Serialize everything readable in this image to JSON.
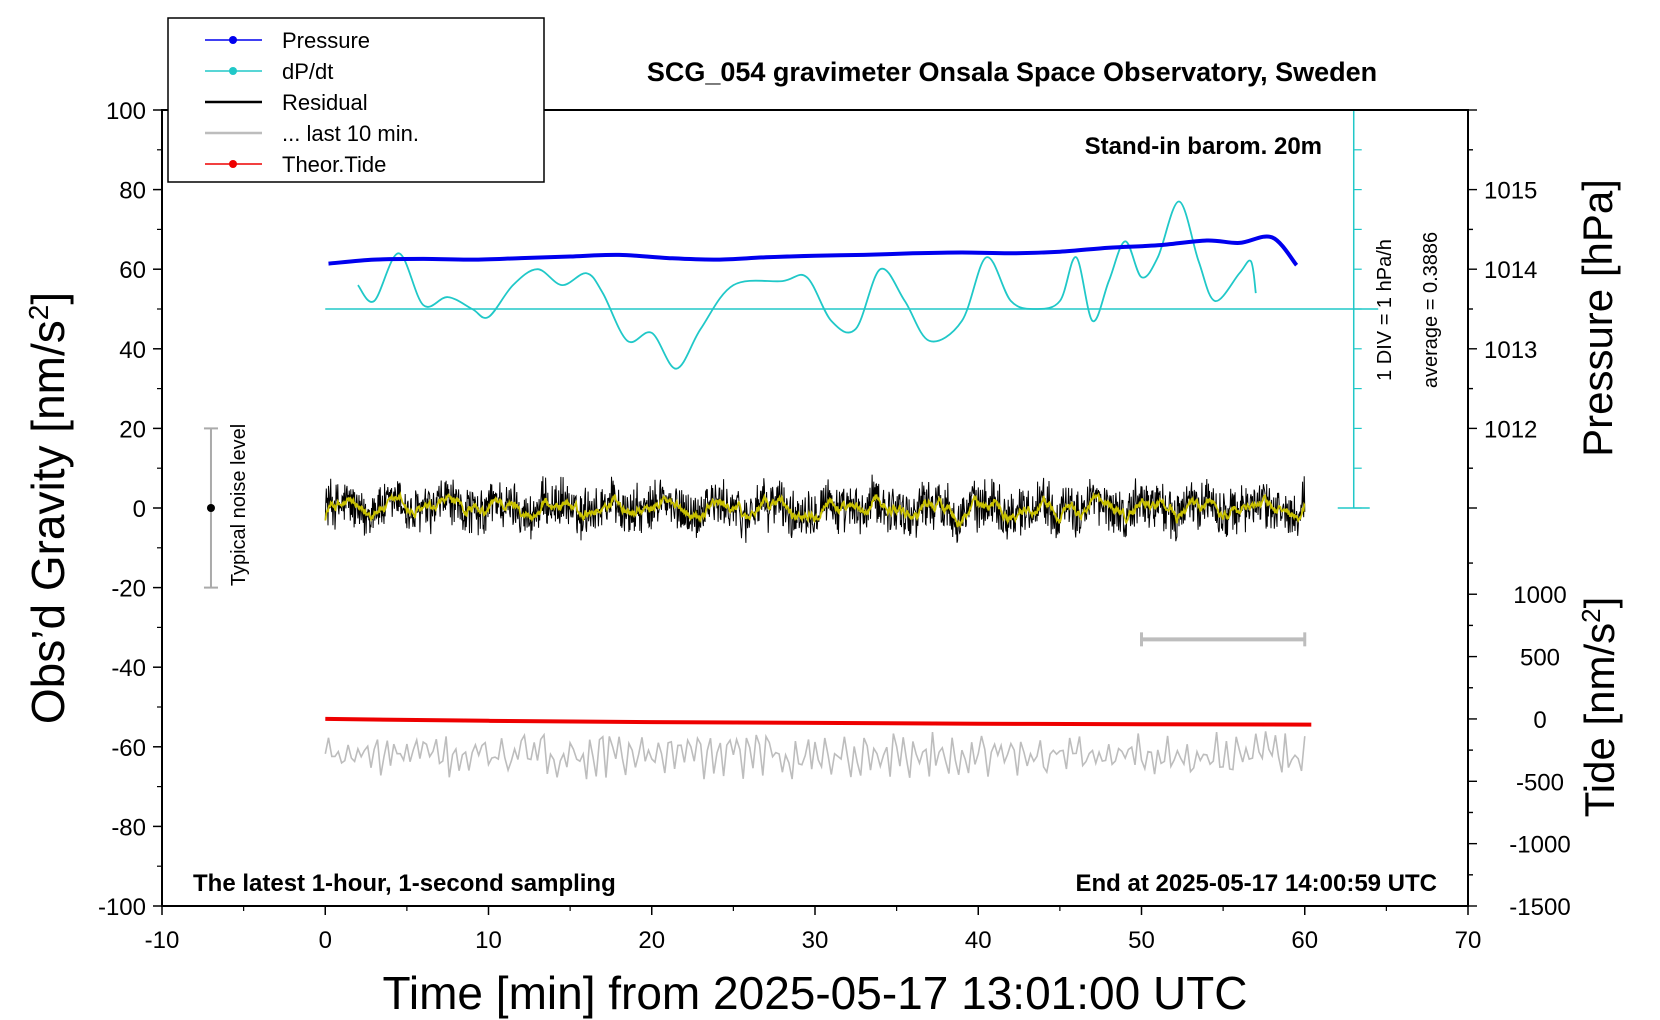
{
  "chart_data": {
    "type": "line",
    "title": "SCG_054 gravimeter Onsala Space Observatory, Sweden",
    "xlabel": "Time [min] from 2025-05-17 13:01:00 UTC",
    "ylabel_left_main": "Obs’d Gravity [nm/s",
    "ylabel_left_sup": "2",
    "ylabel_left_end": "]",
    "ylabel_right_pressure": "Pressure [hPa]",
    "ylabel_right_tide_main": "Tide [nm/s",
    "ylabel_right_tide_sup": "2",
    "ylabel_right_tide_end": "]",
    "xlim": [
      -10,
      70
    ],
    "ylim_left": [
      -100,
      100
    ],
    "pressure_axis": {
      "range": [
        1011,
        1016
      ],
      "ticks": [
        1012,
        1013,
        1014,
        1015
      ],
      "tick_labels": [
        "1012",
        "1013",
        "1014",
        "1015"
      ]
    },
    "tide_axis": {
      "range": [
        -1500,
        1500
      ],
      "ticks": [
        -1500,
        -1000,
        -500,
        0,
        500,
        1000
      ],
      "tick_labels": [
        "-1500",
        "-1000",
        "-500",
        "0",
        "500",
        "1000"
      ]
    },
    "x_ticks": [
      -10,
      0,
      10,
      20,
      30,
      40,
      50,
      60,
      70
    ],
    "x_tick_labels": [
      "-10",
      "0",
      "10",
      "20",
      "30",
      "40",
      "50",
      "60",
      "70"
    ],
    "y_ticks": [
      -100,
      -80,
      -60,
      -40,
      -20,
      0,
      20,
      40,
      60,
      80,
      100
    ],
    "y_tick_labels": [
      "-100",
      "-80",
      "-60",
      "-40",
      "-20",
      "0",
      "20",
      "40",
      "60",
      "80",
      "100"
    ],
    "annotations": {
      "barometer": "Stand-in barom. 20m",
      "latest": "The latest 1-hour, 1-second sampling",
      "end_time": "End at 2025-05-17 14:00:59 UTC",
      "noise_label": "Typical noise level",
      "div_label": "1 DIV = 1 hPa/h",
      "average_label": "average = 0.3886"
    },
    "legend": [
      {
        "label": "Pressure",
        "color": "#0000ee",
        "marker": true
      },
      {
        "label": "dP/dt",
        "color": "#20c8c8",
        "marker": true
      },
      {
        "label": "Residual",
        "color": "#000000",
        "marker": false
      },
      {
        "label": "... last 10 min.",
        "color": "#bdbdbd",
        "marker": false
      },
      {
        "label": "Theor.Tide",
        "color": "#ee0000",
        "marker": true
      }
    ],
    "colors": {
      "pressure": "#0000ee",
      "dpdt": "#20c8c8",
      "residual": "#000000",
      "residual_smooth": "#c8c000",
      "last10": "#bdbdbd",
      "tide": "#ee0000",
      "noise_bar": "#aaaaaa",
      "div_axis": "#20c8c8"
    },
    "noise_bar": {
      "x": -7,
      "y_center": 0,
      "y_low": -20,
      "y_high": 20
    },
    "last10_bar": {
      "x_start": 50,
      "x_end": 60,
      "y": -33
    },
    "dpdt_baseline_y": 50,
    "div_axis": {
      "x": 63,
      "y_bottom": 0,
      "y_top": 100,
      "tick_step": 10
    },
    "series": [
      {
        "name": "Pressure",
        "x": [
          0.2,
          3,
          6,
          9,
          12,
          15,
          18,
          21,
          24,
          27,
          30,
          33,
          36,
          39,
          42,
          45,
          48,
          51,
          54,
          56,
          58,
          59.5
        ],
        "values": [
          1014.07,
          1014.12,
          1014.13,
          1014.12,
          1014.14,
          1014.16,
          1014.18,
          1014.14,
          1014.12,
          1014.15,
          1014.17,
          1014.18,
          1014.2,
          1014.21,
          1014.2,
          1014.22,
          1014.27,
          1014.3,
          1014.36,
          1014.33,
          1014.4,
          1014.05
        ]
      },
      {
        "name": "dP/dt",
        "x": [
          2,
          3,
          4.5,
          6,
          7.5,
          9,
          10,
          11.5,
          13,
          14.5,
          16,
          17,
          18.5,
          20,
          21.5,
          23,
          25,
          28,
          29.5,
          31,
          32.5,
          34,
          35.5,
          37,
          39,
          40.5,
          42,
          43.5,
          45,
          46,
          47,
          48,
          49,
          50,
          51,
          52.3,
          53.5,
          54.5,
          56,
          56.7,
          57
        ],
        "values": [
          56,
          52,
          64,
          51,
          53,
          50,
          48,
          56,
          60,
          56,
          59,
          54,
          42,
          44,
          35,
          45,
          56,
          57,
          58,
          47,
          45,
          60,
          52,
          42,
          47,
          63,
          52,
          50,
          52,
          63,
          47,
          57,
          67,
          58,
          63,
          77,
          62,
          52,
          59,
          62,
          54
        ]
      },
      {
        "name": "Residual",
        "x_range": [
          0,
          60
        ],
        "y_center": 0,
        "amplitude_nm_s2": 7
      },
      {
        "name": "... last 10 min.",
        "x_range": [
          0,
          60
        ],
        "y_center": -62,
        "amplitude_nm_s2": 5
      },
      {
        "name": "Theor.Tide",
        "x": [
          0,
          10,
          20,
          30,
          40,
          50,
          60.4
        ],
        "values": [
          0,
          -15,
          -25,
          -32,
          -38,
          -42,
          -45
        ]
      }
    ]
  }
}
